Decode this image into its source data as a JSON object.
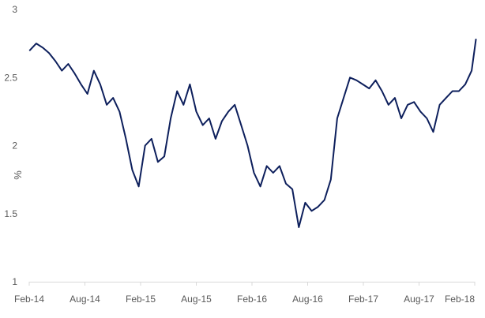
{
  "chart_data": {
    "type": "line",
    "title": "",
    "xlabel": "",
    "ylabel": "%",
    "ylim": [
      1,
      3
    ],
    "yticks": [
      "1",
      "1.5",
      "2",
      "2.5",
      "3"
    ],
    "ytick_values": [
      1,
      1.5,
      2,
      2.5,
      3
    ],
    "xticks": [
      "Feb-14",
      "Aug-14",
      "Feb-15",
      "Aug-15",
      "Feb-16",
      "Aug-16",
      "Feb-17",
      "Aug-17",
      "Feb-18"
    ],
    "grid": false,
    "legend": "none",
    "series": [
      {
        "color": "#0d1f5c",
        "x": [
          "2014-02-03",
          "2014-02-24",
          "2014-03-17",
          "2014-04-07",
          "2014-04-28",
          "2014-05-19",
          "2014-06-09",
          "2014-06-30",
          "2014-07-21",
          "2014-08-11",
          "2014-09-01",
          "2014-09-22",
          "2014-10-13",
          "2014-11-03",
          "2014-11-24",
          "2014-12-15",
          "2015-01-05",
          "2015-01-26",
          "2015-02-16",
          "2015-03-09",
          "2015-03-30",
          "2015-04-20",
          "2015-05-11",
          "2015-06-01",
          "2015-06-22",
          "2015-07-13",
          "2015-08-03",
          "2015-08-24",
          "2015-09-14",
          "2015-10-05",
          "2015-10-26",
          "2015-11-16",
          "2015-12-07",
          "2015-12-28",
          "2016-01-18",
          "2016-02-08",
          "2016-02-29",
          "2016-03-21",
          "2016-04-11",
          "2016-05-02",
          "2016-05-23",
          "2016-06-13",
          "2016-07-04",
          "2016-07-25",
          "2016-08-15",
          "2016-09-05",
          "2016-09-26",
          "2016-10-17",
          "2016-11-07",
          "2016-11-28",
          "2016-12-19",
          "2017-01-09",
          "2017-01-30",
          "2017-02-20",
          "2017-03-13",
          "2017-04-03",
          "2017-04-24",
          "2017-05-15",
          "2017-06-05",
          "2017-06-26",
          "2017-07-17",
          "2017-08-07",
          "2017-08-28",
          "2017-09-18",
          "2017-10-09",
          "2017-10-30",
          "2017-11-20",
          "2017-12-11",
          "2018-01-01",
          "2018-01-22",
          "2018-02-05"
        ],
        "y": [
          2.7,
          2.75,
          2.72,
          2.68,
          2.62,
          2.55,
          2.6,
          2.53,
          2.45,
          2.38,
          2.55,
          2.45,
          2.3,
          2.35,
          2.25,
          2.05,
          1.82,
          1.7,
          2.0,
          2.05,
          1.88,
          1.92,
          2.2,
          2.4,
          2.3,
          2.45,
          2.25,
          2.15,
          2.2,
          2.05,
          2.18,
          2.25,
          2.3,
          2.15,
          2.0,
          1.8,
          1.7,
          1.85,
          1.8,
          1.85,
          1.72,
          1.68,
          1.4,
          1.58,
          1.52,
          1.55,
          1.6,
          1.75,
          2.2,
          2.35,
          2.5,
          2.48,
          2.45,
          2.42,
          2.48,
          2.4,
          2.3,
          2.35,
          2.2,
          2.3,
          2.32,
          2.25,
          2.2,
          2.1,
          2.3,
          2.35,
          2.4,
          2.4,
          2.45,
          2.55,
          2.78
        ]
      }
    ]
  }
}
